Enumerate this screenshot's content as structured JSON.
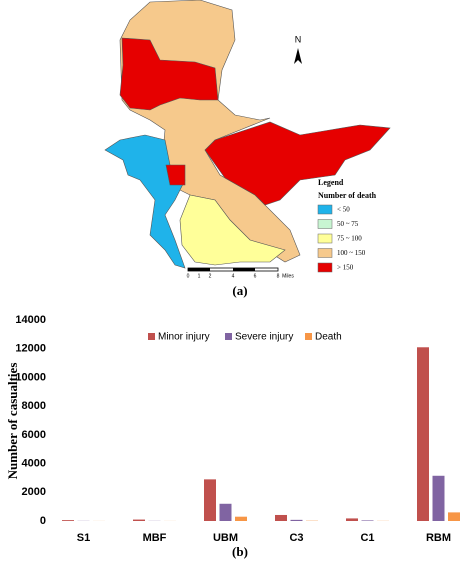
{
  "map": {
    "north": "N",
    "legend_title": "Legend",
    "legend_subtitle": "Number of death",
    "legend_items": [
      {
        "label": "< 50",
        "color": "#1fb3ea"
      },
      {
        "label": "50 ~ 75",
        "color": "#c8f5d2"
      },
      {
        "label": "75 ~ 100",
        "color": "#ffff99"
      },
      {
        "label": "100 ~ 150",
        "color": "#f6c98c"
      },
      {
        "label": "> 150",
        "color": "#e60000"
      }
    ],
    "scale_labels": [
      "0",
      "1",
      "2",
      "4",
      "6",
      "8",
      "Miles"
    ],
    "caption": "(a)"
  },
  "chart_data": {
    "type": "bar",
    "ylabel": "Number of casualties",
    "caption": "(b)",
    "categories": [
      "S1",
      "MBF",
      "UBM",
      "C3",
      "C1",
      "RBM"
    ],
    "series": [
      {
        "name": "Minor injury",
        "color": "#c0504d",
        "values": [
          60,
          100,
          2900,
          420,
          180,
          12100
        ]
      },
      {
        "name": "Severe injury",
        "color": "#8064a2",
        "values": [
          10,
          10,
          1200,
          80,
          40,
          3150
        ]
      },
      {
        "name": "Death",
        "color": "#f79646",
        "values": [
          5,
          5,
          300,
          20,
          10,
          600
        ]
      }
    ],
    "ylim": [
      0,
      14000
    ],
    "yticks": [
      0,
      2000,
      4000,
      6000,
      8000,
      10000,
      12000,
      14000
    ]
  }
}
